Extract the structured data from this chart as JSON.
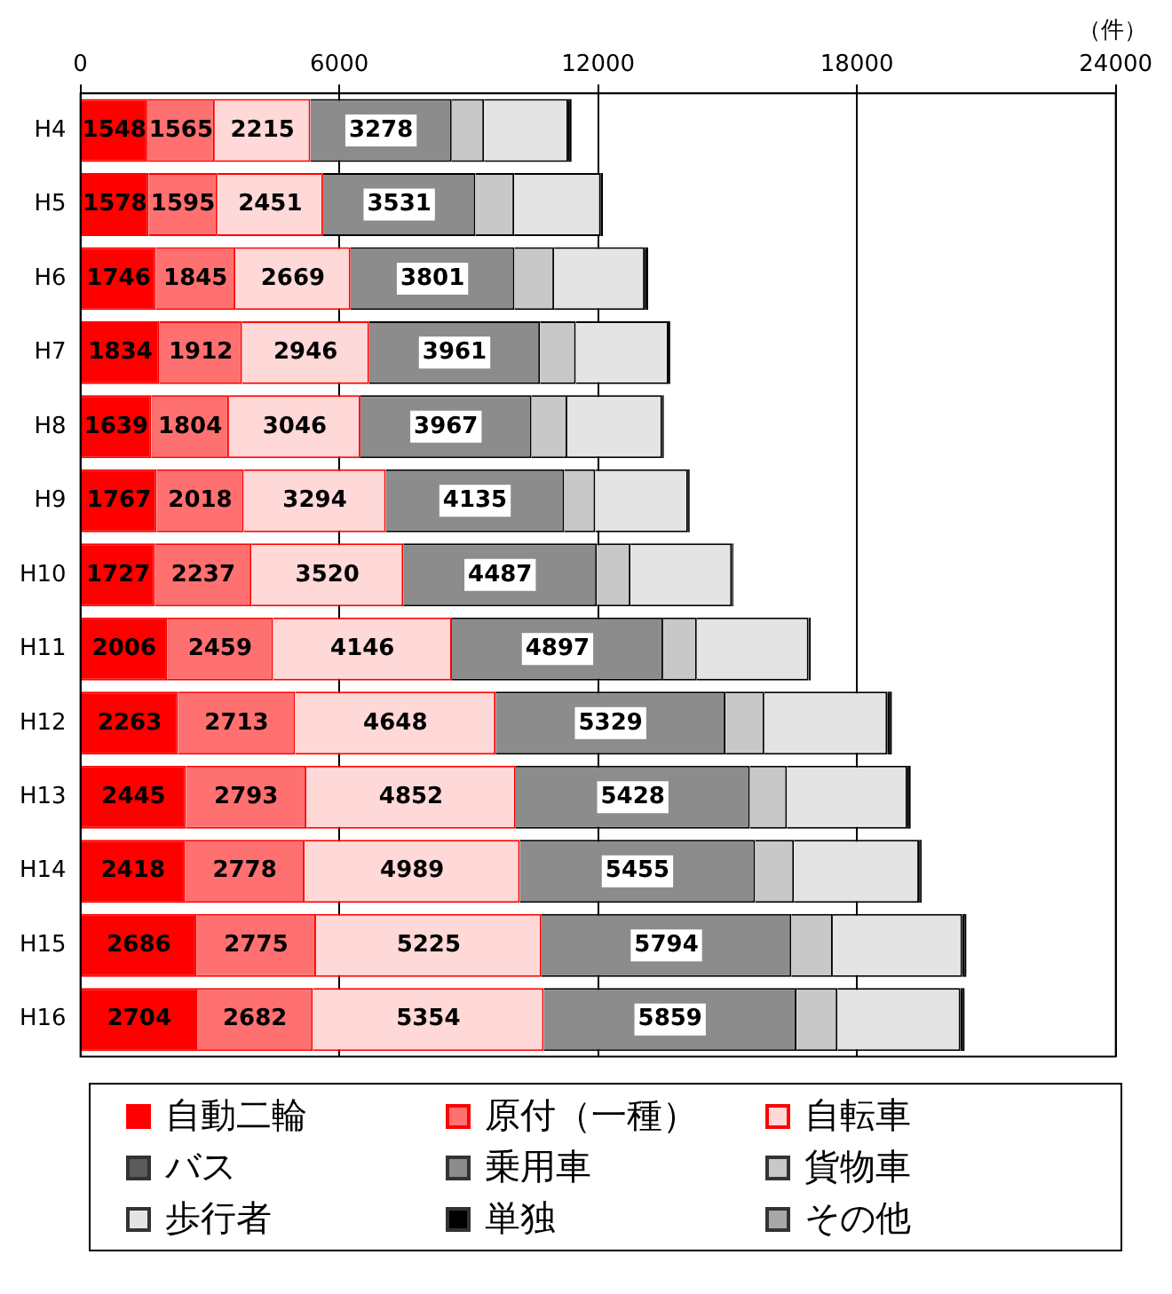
{
  "chart_data": {
    "type": "bar",
    "orientation": "horizontal",
    "stacked": true,
    "categories": [
      "H4",
      "H5",
      "H6",
      "H7",
      "H8",
      "H9",
      "H10",
      "H11",
      "H12",
      "H13",
      "H14",
      "H15",
      "H16"
    ],
    "series": [
      {
        "name": "自動二輪",
        "color": "#ff0000",
        "values": [
          1548,
          1578,
          1746,
          1834,
          1639,
          1767,
          1727,
          2006,
          2263,
          2445,
          2418,
          2686,
          2704
        ],
        "value_labels": [
          "1548",
          "1578",
          "1746",
          "1834",
          "1639",
          "1767",
          "1727",
          "2006",
          "2263",
          "2445",
          "2418",
          "2686",
          "2704"
        ]
      },
      {
        "name": "原付（一種）",
        "color": "#ff7070",
        "values": [
          1565,
          1595,
          1845,
          1912,
          1804,
          2018,
          2237,
          2459,
          2713,
          2793,
          2778,
          2775,
          2682
        ],
        "value_labels": [
          "1565",
          "1595",
          "1845",
          "1912",
          "1804",
          "2018",
          "2237",
          "2459",
          "2713",
          "2793",
          "2778",
          "2775",
          "2682"
        ]
      },
      {
        "name": "自転車",
        "color": "#ffd8d8",
        "values": [
          2215,
          2451,
          2669,
          2946,
          3046,
          3294,
          3520,
          4146,
          4648,
          4852,
          4989,
          5225,
          5354
        ],
        "value_labels": [
          "2215",
          "2451",
          "2669",
          "2946",
          "3046",
          "3294",
          "3520",
          "4146",
          "4648",
          "4852",
          "4989",
          "5225",
          "5354"
        ]
      },
      {
        "name": "バス",
        "color": "#5a5a5a",
        "values": [
          0,
          0,
          0,
          0,
          0,
          0,
          0,
          0,
          0,
          0,
          0,
          0,
          0
        ]
      },
      {
        "name": "乗用車",
        "color": "#8c8c8c",
        "values": [
          3278,
          3531,
          3801,
          3961,
          3967,
          4135,
          4487,
          4897,
          5329,
          5428,
          5455,
          5794,
          5859
        ],
        "value_labels": [
          "3278",
          "3531",
          "3801",
          "3961",
          "3967",
          "4135",
          "4487",
          "4897",
          "5329",
          "5428",
          "5455",
          "5794",
          "5859"
        ]
      },
      {
        "name": "貨物車",
        "color": "#c8c8c8",
        "values": [
          750,
          900,
          920,
          830,
          830,
          720,
          780,
          780,
          900,
          860,
          900,
          960,
          950
        ]
      },
      {
        "name": "歩行者",
        "color": "#e4e4e4",
        "values": [
          1950,
          2010,
          2100,
          2150,
          2200,
          2150,
          2350,
          2590,
          2850,
          2790,
          2900,
          3000,
          2850
        ]
      },
      {
        "name": "単独",
        "color": "#000000",
        "values": [
          80,
          50,
          80,
          40,
          40,
          40,
          40,
          50,
          110,
          80,
          60,
          100,
          100
        ]
      },
      {
        "name": "その他",
        "color": "#a8a8a8",
        "values": [
          0,
          0,
          0,
          0,
          0,
          0,
          0,
          0,
          0,
          0,
          0,
          0,
          0
        ]
      }
    ],
    "xlim": [
      0,
      24000
    ],
    "xticks": [
      0,
      6000,
      12000,
      18000,
      24000
    ],
    "grid": "x",
    "legend": "bottom",
    "annotations": [
      "（件）"
    ]
  }
}
